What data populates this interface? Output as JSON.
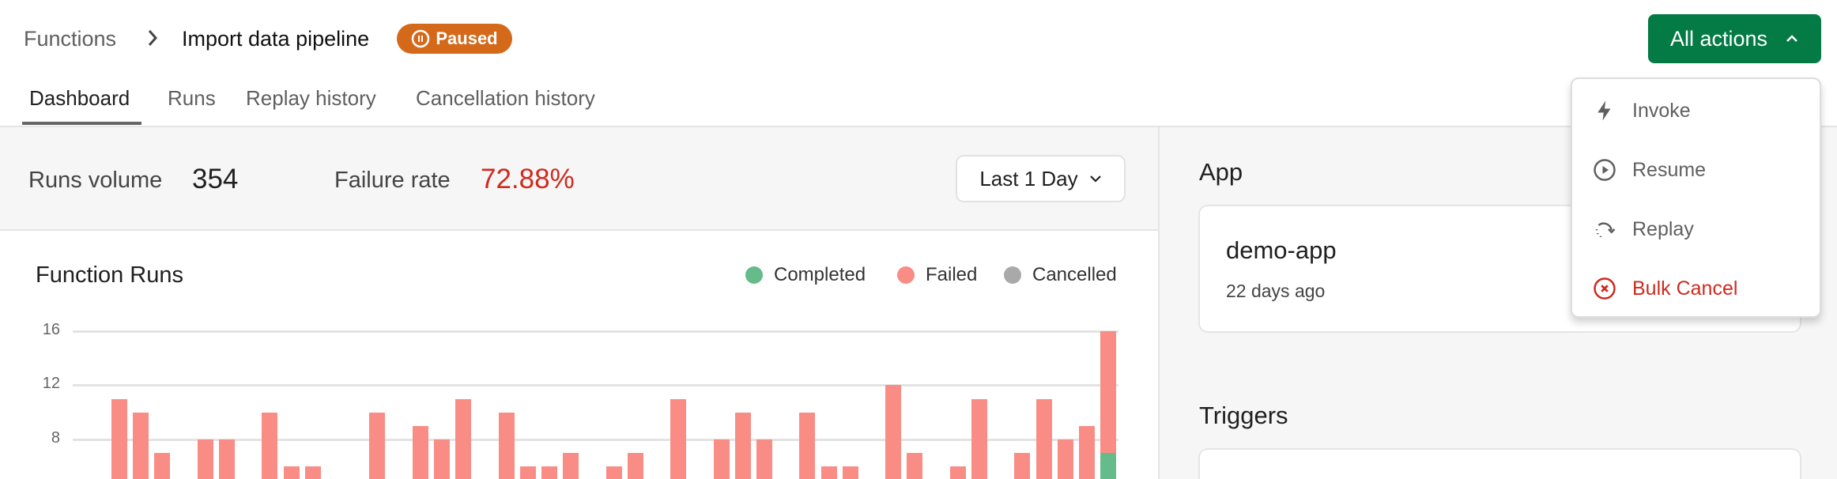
{
  "breadcrumb": {
    "parent": "Functions",
    "current": "Import data pipeline",
    "status": "Paused"
  },
  "tabs": [
    "Dashboard",
    "Runs",
    "Replay history",
    "Cancellation history"
  ],
  "active_tab": "Dashboard",
  "stats": {
    "runs_volume_label": "Runs volume",
    "runs_volume": "354",
    "failure_rate_label": "Failure rate",
    "failure_rate": "72.88%",
    "range": "Last 1 Day"
  },
  "actions": {
    "label": "All actions",
    "menu": [
      {
        "label": "Invoke",
        "icon": "lightning-icon"
      },
      {
        "label": "Resume",
        "icon": "play-circle-icon"
      },
      {
        "label": "Replay",
        "icon": "replay-icon"
      },
      {
        "label": "Bulk Cancel",
        "icon": "x-circle-icon"
      }
    ]
  },
  "app": {
    "heading": "App",
    "name": "demo-app",
    "updated": "22 days ago"
  },
  "triggers": {
    "heading": "Triggers"
  },
  "colors": {
    "completed": "#66bb8a",
    "failed": "#f98d86",
    "cancelled": "#a9a9a9",
    "accent": "#047a45",
    "paused": "#d4691a",
    "danger": "#cf2a1e"
  },
  "chart_data": {
    "type": "bar",
    "stacked": true,
    "title": "Function Runs",
    "legend": [
      "Completed",
      "Failed",
      "Cancelled"
    ],
    "legend_position": "top-right",
    "yticks": [
      "8",
      "12",
      "16"
    ],
    "grid": true,
    "series": [
      {
        "name": "Completed",
        "values": [
          0,
          0,
          0,
          0,
          0,
          0,
          0,
          0,
          0,
          0,
          0,
          0,
          0,
          0,
          0,
          0,
          0,
          0,
          0,
          0,
          0,
          0,
          0,
          0,
          0,
          0,
          0,
          0,
          0,
          0,
          0,
          0,
          0,
          0,
          0,
          0,
          0,
          0,
          0,
          0,
          0,
          0,
          0,
          0,
          0,
          0,
          7
        ]
      },
      {
        "name": "Failed",
        "values": [
          11,
          10,
          7,
          0,
          8,
          8,
          0,
          10,
          6,
          6,
          0,
          0,
          10,
          0,
          9,
          8,
          11,
          0,
          10,
          6,
          6,
          7,
          0,
          6,
          7,
          0,
          11,
          0,
          8,
          10,
          8,
          0,
          10,
          6,
          6,
          0,
          12,
          7,
          0,
          6,
          11,
          0,
          7,
          11,
          8,
          9,
          9
        ]
      },
      {
        "name": "Cancelled",
        "values": [
          0,
          0,
          0,
          0,
          0,
          0,
          0,
          0,
          0,
          0,
          0,
          0,
          0,
          0,
          0,
          0,
          0,
          0,
          0,
          0,
          0,
          0,
          0,
          0,
          0,
          0,
          0,
          0,
          0,
          0,
          0,
          0,
          0,
          0,
          0,
          0,
          0,
          0,
          0,
          0,
          0,
          0,
          0,
          0,
          0,
          0,
          0
        ]
      }
    ]
  }
}
